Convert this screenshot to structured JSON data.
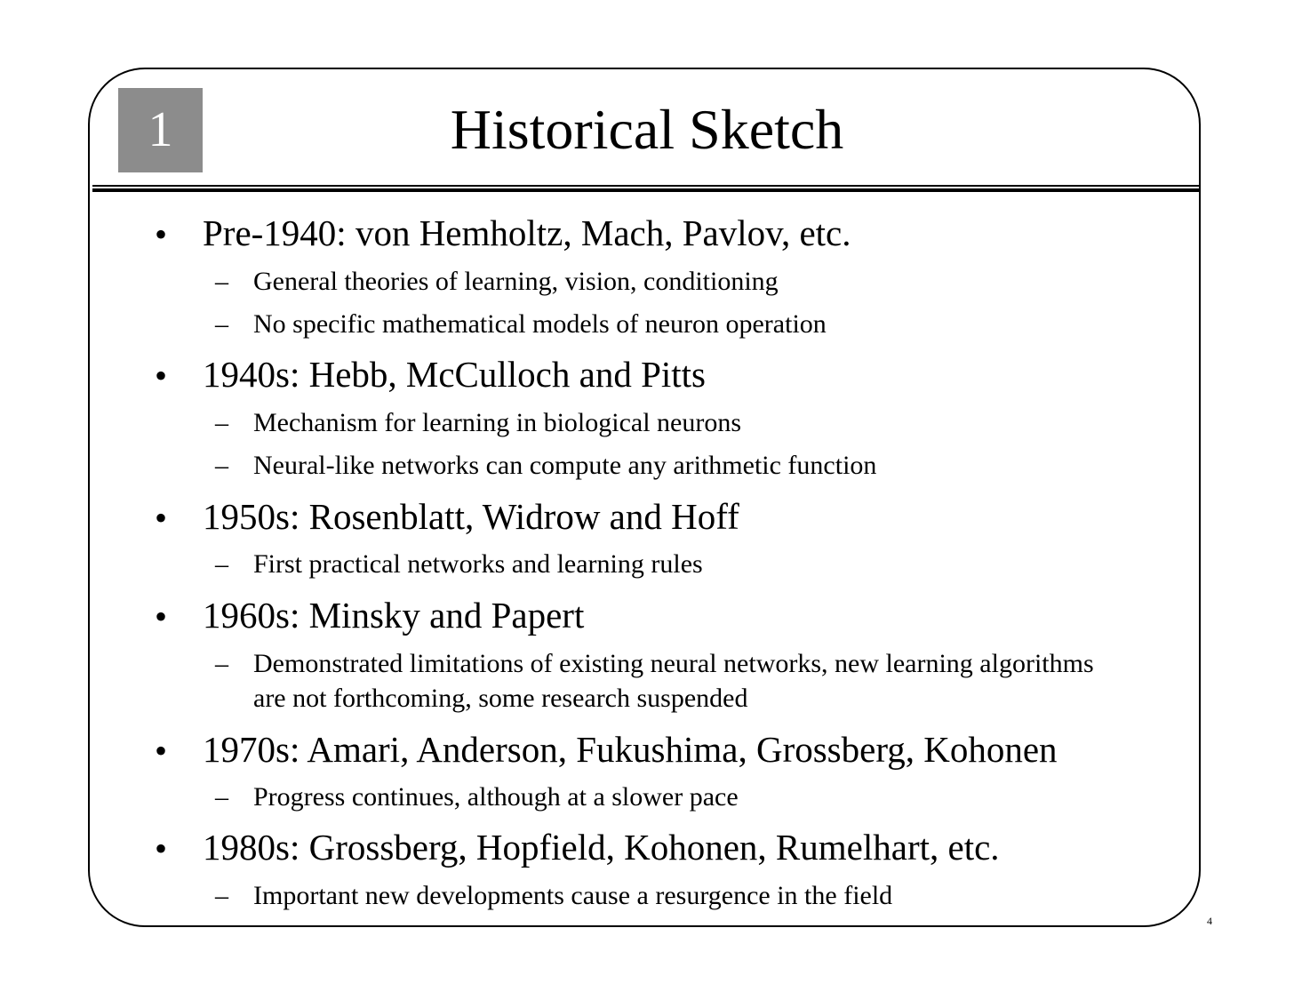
{
  "slide": {
    "chapter_number": "1",
    "title": "Historical Sketch",
    "page_number": "4"
  },
  "items": [
    {
      "text": "Pre-1940: von Hemholtz, Mach, Pavlov, etc.",
      "subs": [
        "General theories of learning, vision, conditioning",
        "No specific mathematical models of neuron operation"
      ]
    },
    {
      "text": "1940s: Hebb, McCulloch and Pitts",
      "subs": [
        "Mechanism for learning in biological neurons",
        "Neural-like networks can compute any arithmetic function"
      ]
    },
    {
      "text": "1950s: Rosenblatt, Widrow and Hoff",
      "subs": [
        "First practical networks and learning rules"
      ]
    },
    {
      "text": "1960s: Minsky and Papert",
      "subs": [
        "Demonstrated limitations of existing neural networks, new learning algorithms are not forthcoming, some research suspended"
      ]
    },
    {
      "text": "1970s: Amari, Anderson, Fukushima, Grossberg, Kohonen",
      "subs": [
        "Progress continues, although at a slower pace"
      ]
    },
    {
      "text": "1980s: Grossberg, Hopfield, Kohonen, Rumelhart, etc.",
      "subs": [
        "Important new developments cause a resurgence in the field"
      ]
    }
  ],
  "symbols": {
    "bullet": "•",
    "dash": "–"
  }
}
